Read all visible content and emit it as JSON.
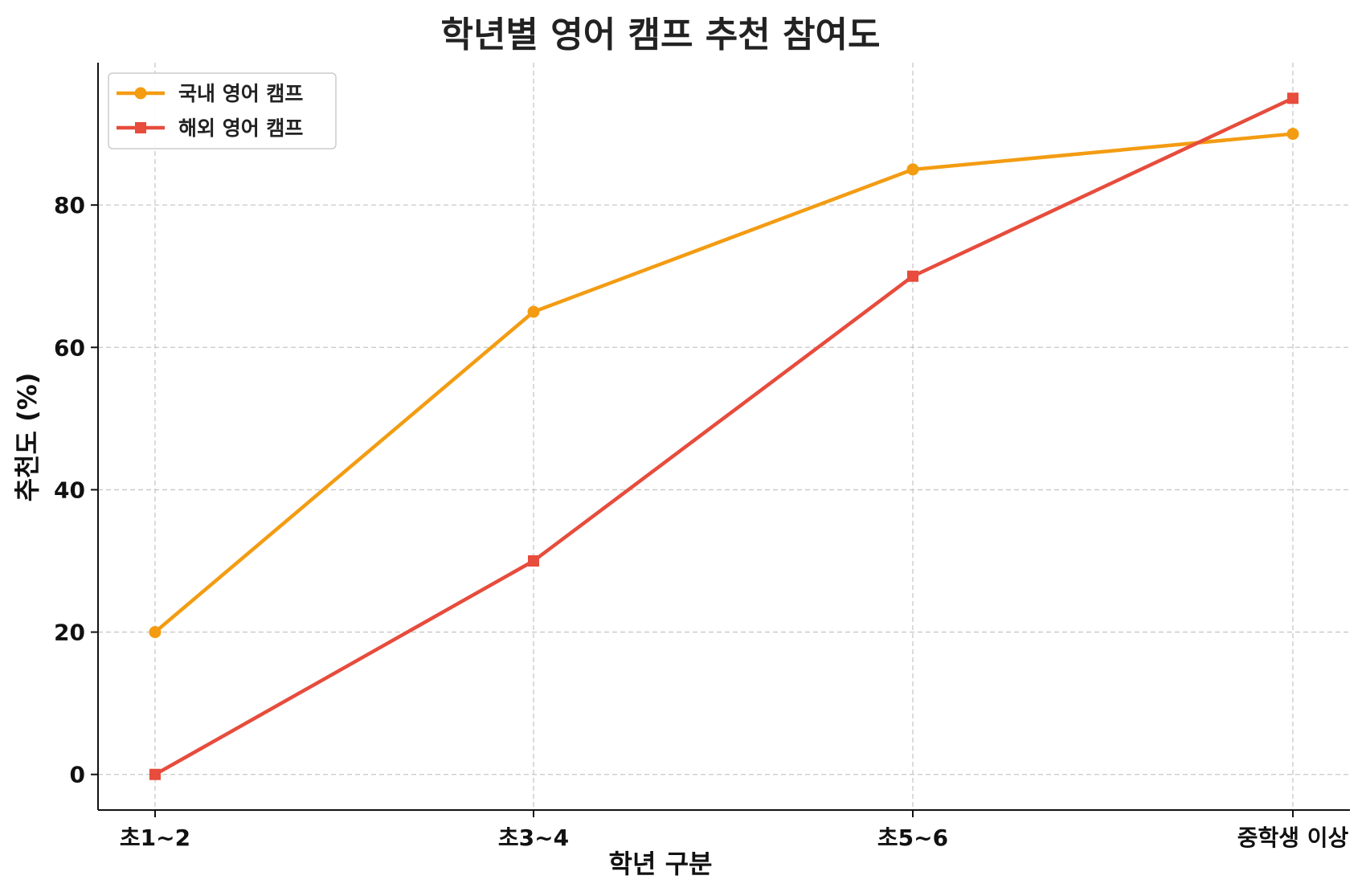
{
  "chart_data": {
    "type": "line",
    "title": "학년별 영어 캠프 추천 참여도",
    "xlabel": "학년 구분",
    "ylabel": "추천도 (%)",
    "categories": [
      "초1~2",
      "초3~4",
      "초5~6",
      "중학생 이상"
    ],
    "ylim": [
      -5,
      100
    ],
    "yticks": [
      0,
      20,
      40,
      60,
      80
    ],
    "grid": true,
    "legend_position": "top-left",
    "series": [
      {
        "name": "국내 영어 캠프",
        "values": [
          20,
          65,
          85,
          90
        ],
        "color": "#f39c12",
        "marker": "circle"
      },
      {
        "name": "해외 영어 캠프",
        "values": [
          0,
          30,
          70,
          95
        ],
        "color": "#e74c3c",
        "marker": "square"
      }
    ]
  }
}
